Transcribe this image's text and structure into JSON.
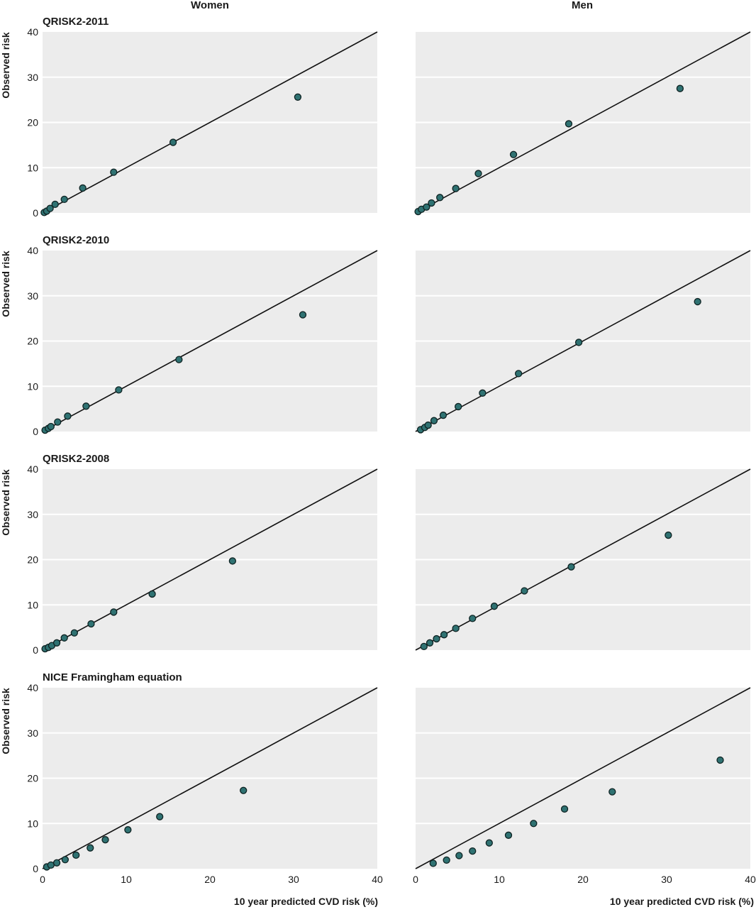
{
  "columns": [
    "Women",
    "Men"
  ],
  "rows": [
    "QRISK2-2011",
    "QRISK2-2010",
    "QRISK2-2008",
    "NICE Framingham equation"
  ],
  "ylabel": "Observed risk",
  "xlabel": "10 year predicted CVD risk (%)",
  "colors": {
    "panel": "#ececec",
    "grid": "#ffffff",
    "point": "#2f7272",
    "point_edge": "#0e2222",
    "line": "#111111"
  },
  "chart_data": [
    {
      "type": "scatter",
      "title": "QRISK2-2011",
      "group": "Women",
      "xlim": [
        0,
        40
      ],
      "ylim": [
        0,
        40
      ],
      "xticks": [
        0,
        10,
        20,
        30,
        40
      ],
      "yticks": [
        0,
        10,
        20,
        30,
        40
      ],
      "reference_line": "y = x",
      "grid": "horizontal",
      "x": [
        0.2,
        0.5,
        0.9,
        1.5,
        2.6,
        4.8,
        8.5,
        15.6,
        30.5
      ],
      "y": [
        0.1,
        0.4,
        1.0,
        1.9,
        3.0,
        5.5,
        9.0,
        15.6,
        25.6
      ]
    },
    {
      "type": "scatter",
      "title": "QRISK2-2011",
      "group": "Men",
      "xlim": [
        0,
        40
      ],
      "ylim": [
        0,
        40
      ],
      "xticks": [
        0,
        10,
        20,
        30,
        40
      ],
      "yticks": [
        0,
        10,
        20,
        30,
        40
      ],
      "reference_line": "y = x",
      "grid": "horizontal",
      "x": [
        0.3,
        0.7,
        1.3,
        1.9,
        2.9,
        4.8,
        7.5,
        11.7,
        18.3,
        31.6
      ],
      "y": [
        0.3,
        0.8,
        1.3,
        2.2,
        3.4,
        5.4,
        8.7,
        12.9,
        19.7,
        27.5
      ]
    },
    {
      "type": "scatter",
      "title": "QRISK2-2010",
      "group": "Women",
      "xlim": [
        0,
        40
      ],
      "ylim": [
        0,
        40
      ],
      "xticks": [
        0,
        10,
        20,
        30,
        40
      ],
      "yticks": [
        0,
        10,
        20,
        30,
        40
      ],
      "reference_line": "y = x",
      "grid": "horizontal",
      "x": [
        0.3,
        0.7,
        1.0,
        1.8,
        3.0,
        5.2,
        9.1,
        16.3,
        31.1
      ],
      "y": [
        0.3,
        0.7,
        1.1,
        2.1,
        3.4,
        5.6,
        9.2,
        15.9,
        25.8
      ]
    },
    {
      "type": "scatter",
      "title": "QRISK2-2010",
      "group": "Men",
      "xlim": [
        0,
        40
      ],
      "ylim": [
        0,
        40
      ],
      "xticks": [
        0,
        10,
        20,
        30,
        40
      ],
      "yticks": [
        0,
        10,
        20,
        30,
        40
      ],
      "reference_line": "y = x",
      "grid": "horizontal",
      "x": [
        0.6,
        1.1,
        1.5,
        2.2,
        3.3,
        5.1,
        8.0,
        12.3,
        19.5,
        33.7
      ],
      "y": [
        0.4,
        0.9,
        1.4,
        2.4,
        3.6,
        5.5,
        8.5,
        12.8,
        19.7,
        28.7
      ]
    },
    {
      "type": "scatter",
      "title": "QRISK2-2008",
      "group": "Women",
      "xlim": [
        0,
        40
      ],
      "ylim": [
        0,
        40
      ],
      "xticks": [
        0,
        10,
        20,
        30,
        40
      ],
      "yticks": [
        0,
        10,
        20,
        30,
        40
      ],
      "reference_line": "y = x",
      "grid": "horizontal",
      "x": [
        0.3,
        0.7,
        1.1,
        1.7,
        2.6,
        3.8,
        5.8,
        8.5,
        13.1,
        22.7
      ],
      "y": [
        0.3,
        0.6,
        1.0,
        1.6,
        2.7,
        3.8,
        5.8,
        8.4,
        12.4,
        19.7
      ]
    },
    {
      "type": "scatter",
      "title": "QRISK2-2008",
      "group": "Men",
      "xlim": [
        0,
        40
      ],
      "ylim": [
        0,
        40
      ],
      "xticks": [
        0,
        10,
        20,
        30,
        40
      ],
      "yticks": [
        0,
        10,
        20,
        30,
        40
      ],
      "reference_line": "y = x",
      "grid": "horizontal",
      "x": [
        1.0,
        1.7,
        2.5,
        3.4,
        4.8,
        6.8,
        9.4,
        13.0,
        18.6,
        30.2
      ],
      "y": [
        0.8,
        1.6,
        2.5,
        3.4,
        4.8,
        7.0,
        9.7,
        13.1,
        18.4,
        25.4
      ]
    },
    {
      "type": "scatter",
      "title": "NICE Framingham equation",
      "group": "Women",
      "xlim": [
        0,
        40
      ],
      "ylim": [
        0,
        40
      ],
      "xticks": [
        0,
        10,
        20,
        30,
        40
      ],
      "yticks": [
        0,
        10,
        20,
        30,
        40
      ],
      "reference_line": "y = x",
      "grid": "horizontal",
      "x": [
        0.5,
        1.0,
        1.7,
        2.7,
        4.0,
        5.7,
        7.5,
        10.2,
        14.0,
        24.0
      ],
      "y": [
        0.4,
        0.8,
        1.3,
        2.0,
        3.0,
        4.6,
        6.4,
        8.6,
        11.5,
        17.3
      ]
    },
    {
      "type": "scatter",
      "title": "NICE Framingham equation",
      "group": "Men",
      "xlim": [
        0,
        40
      ],
      "ylim": [
        0,
        40
      ],
      "xticks": [
        0,
        10,
        20,
        30,
        40
      ],
      "yticks": [
        0,
        10,
        20,
        30,
        40
      ],
      "reference_line": "y = x",
      "grid": "horizontal",
      "x": [
        2.1,
        3.7,
        5.2,
        6.8,
        8.8,
        11.1,
        14.1,
        17.8,
        23.5,
        36.4
      ],
      "y": [
        1.2,
        1.9,
        2.9,
        3.9,
        5.7,
        7.4,
        10.0,
        13.2,
        17.0,
        24.0
      ]
    }
  ]
}
